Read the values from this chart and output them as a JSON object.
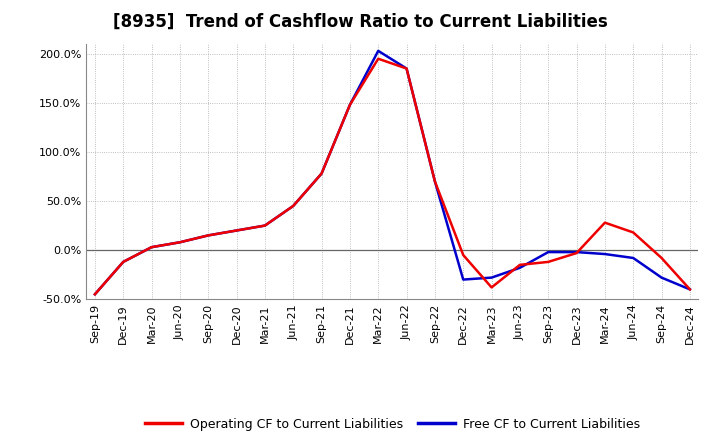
{
  "title": "[8935]  Trend of Cashflow Ratio to Current Liabilities",
  "x_labels": [
    "Sep-19",
    "Dec-19",
    "Mar-20",
    "Jun-20",
    "Sep-20",
    "Dec-20",
    "Mar-21",
    "Jun-21",
    "Sep-21",
    "Dec-21",
    "Mar-22",
    "Jun-22",
    "Sep-22",
    "Dec-22",
    "Mar-23",
    "Jun-23",
    "Sep-23",
    "Dec-23",
    "Mar-24",
    "Jun-24",
    "Sep-24",
    "Dec-24"
  ],
  "operating_cf": [
    -45,
    -12,
    3,
    8,
    15,
    20,
    25,
    45,
    78,
    148,
    195,
    185,
    70,
    -5,
    -38,
    -15,
    -12,
    -3,
    28,
    18,
    -8,
    -40
  ],
  "free_cf": [
    -45,
    -12,
    3,
    8,
    15,
    20,
    25,
    45,
    78,
    148,
    203,
    185,
    70,
    -30,
    -28,
    -18,
    -2,
    -2,
    -4,
    -8,
    -28,
    -40
  ],
  "operating_color": "#EE0000",
  "free_color": "#0000CC",
  "ylim": [
    -50,
    210
  ],
  "yticks": [
    -50,
    0,
    50,
    100,
    150,
    200
  ],
  "ytick_labels": [
    "-50.0%",
    "0.0%",
    "50.0%",
    "100.0%",
    "150.0%",
    "200.0%"
  ],
  "background_color": "#FFFFFF",
  "grid_color": "#AAAAAA",
  "title_fontsize": 12,
  "legend_fontsize": 9,
  "tick_fontsize": 8
}
